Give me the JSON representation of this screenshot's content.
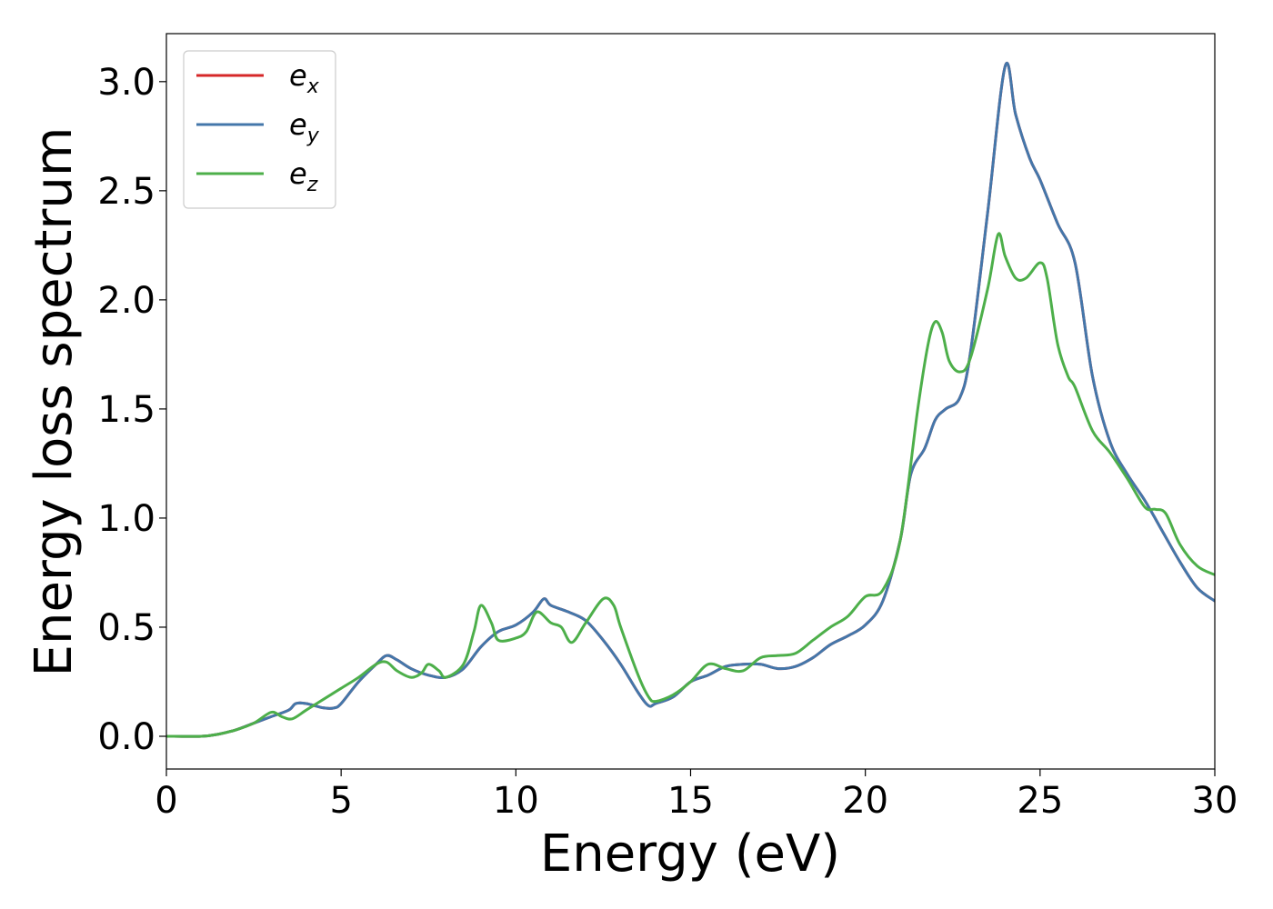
{
  "chart_data": {
    "type": "line",
    "title": "",
    "xlabel": "Energy (eV)",
    "ylabel": "Energy loss spectrum",
    "xlim": [
      0,
      30
    ],
    "ylim": [
      -0.15,
      3.22
    ],
    "xticks": [
      0,
      5,
      10,
      15,
      20,
      25,
      30
    ],
    "xtick_labels": [
      "0",
      "5",
      "10",
      "15",
      "20",
      "25",
      "30"
    ],
    "yticks": [
      0.0,
      0.5,
      1.0,
      1.5,
      2.0,
      2.5,
      3.0
    ],
    "ytick_labels": [
      "0.0",
      "0.5",
      "1.0",
      "1.5",
      "2.0",
      "2.5",
      "3.0"
    ],
    "grid": false,
    "legend_position": "top-left",
    "series": [
      {
        "name": "e_x",
        "legend_base": "e",
        "legend_sub": "x",
        "color": "#d62728",
        "x": [
          0,
          1,
          1.5,
          2,
          2.5,
          3,
          3.5,
          3.7,
          4,
          4.5,
          4.8,
          5,
          5.5,
          6,
          6.3,
          6.6,
          7,
          7.5,
          8,
          8.5,
          9,
          9.5,
          10,
          10.5,
          10.8,
          11,
          11.5,
          12,
          12.5,
          13,
          13.5,
          13.8,
          14,
          14.5,
          15,
          15.5,
          16,
          16.5,
          17,
          17.5,
          18,
          18.5,
          19,
          19.5,
          20,
          20.5,
          21,
          21.3,
          21.7,
          22,
          22.3,
          22.7,
          23,
          23.5,
          24,
          24.3,
          24.7,
          25,
          25.5,
          26,
          26.5,
          27,
          27.5,
          28,
          28.5,
          29,
          29.5,
          30
        ],
        "y": [
          0,
          0,
          0.01,
          0.03,
          0.06,
          0.09,
          0.12,
          0.15,
          0.15,
          0.13,
          0.13,
          0.15,
          0.25,
          0.33,
          0.37,
          0.35,
          0.31,
          0.28,
          0.27,
          0.31,
          0.41,
          0.48,
          0.51,
          0.57,
          0.63,
          0.6,
          0.57,
          0.53,
          0.44,
          0.33,
          0.2,
          0.14,
          0.15,
          0.18,
          0.25,
          0.28,
          0.32,
          0.33,
          0.33,
          0.31,
          0.32,
          0.36,
          0.42,
          0.46,
          0.51,
          0.62,
          0.9,
          1.2,
          1.32,
          1.45,
          1.5,
          1.55,
          1.75,
          2.4,
          3.07,
          2.85,
          2.65,
          2.55,
          2.35,
          2.17,
          1.65,
          1.35,
          1.2,
          1.08,
          0.94,
          0.8,
          0.68,
          0.62
        ]
      },
      {
        "name": "e_y",
        "legend_base": "e",
        "legend_sub": "y",
        "color": "#4477aa",
        "x": [
          0,
          1,
          1.5,
          2,
          2.5,
          3,
          3.5,
          3.7,
          4,
          4.5,
          4.8,
          5,
          5.5,
          6,
          6.3,
          6.6,
          7,
          7.5,
          8,
          8.5,
          9,
          9.5,
          10,
          10.5,
          10.8,
          11,
          11.5,
          12,
          12.5,
          13,
          13.5,
          13.8,
          14,
          14.5,
          15,
          15.5,
          16,
          16.5,
          17,
          17.5,
          18,
          18.5,
          19,
          19.5,
          20,
          20.5,
          21,
          21.3,
          21.7,
          22,
          22.3,
          22.7,
          23,
          23.5,
          24,
          24.3,
          24.7,
          25,
          25.5,
          26,
          26.5,
          27,
          27.5,
          28,
          28.5,
          29,
          29.5,
          30
        ],
        "y": [
          0,
          0,
          0.01,
          0.03,
          0.06,
          0.09,
          0.12,
          0.15,
          0.15,
          0.13,
          0.13,
          0.15,
          0.25,
          0.33,
          0.37,
          0.35,
          0.31,
          0.28,
          0.27,
          0.31,
          0.41,
          0.48,
          0.51,
          0.57,
          0.63,
          0.6,
          0.57,
          0.53,
          0.44,
          0.33,
          0.2,
          0.14,
          0.15,
          0.18,
          0.25,
          0.28,
          0.32,
          0.33,
          0.33,
          0.31,
          0.32,
          0.36,
          0.42,
          0.46,
          0.51,
          0.62,
          0.9,
          1.2,
          1.32,
          1.45,
          1.5,
          1.55,
          1.75,
          2.4,
          3.07,
          2.85,
          2.65,
          2.55,
          2.35,
          2.17,
          1.65,
          1.35,
          1.2,
          1.08,
          0.94,
          0.8,
          0.68,
          0.62
        ]
      },
      {
        "name": "e_z",
        "legend_base": "e",
        "legend_sub": "z",
        "color": "#4daf4a",
        "x": [
          0,
          1,
          1.5,
          2,
          2.5,
          3,
          3.3,
          3.6,
          4,
          4.5,
          5,
          5.5,
          6,
          6.3,
          6.6,
          7,
          7.3,
          7.5,
          7.8,
          8,
          8.5,
          8.8,
          9,
          9.3,
          9.5,
          10,
          10.3,
          10.6,
          11,
          11.3,
          11.6,
          12,
          12.5,
          12.8,
          13,
          13.5,
          13.8,
          14,
          14.5,
          15,
          15.5,
          16,
          16.5,
          17,
          17.5,
          18,
          18.5,
          19,
          19.5,
          20,
          20.5,
          21,
          21.5,
          21.8,
          22,
          22.2,
          22.4,
          22.7,
          23,
          23.5,
          23.8,
          24,
          24.3,
          24.6,
          25,
          25.2,
          25.5,
          25.8,
          26,
          26.5,
          27,
          27.5,
          28,
          28.3,
          28.6,
          29,
          29.5,
          30
        ],
        "y": [
          0,
          0,
          0.01,
          0.03,
          0.06,
          0.11,
          0.09,
          0.08,
          0.12,
          0.17,
          0.22,
          0.27,
          0.33,
          0.34,
          0.3,
          0.27,
          0.29,
          0.33,
          0.3,
          0.27,
          0.33,
          0.48,
          0.6,
          0.52,
          0.44,
          0.45,
          0.48,
          0.57,
          0.52,
          0.5,
          0.43,
          0.52,
          0.63,
          0.6,
          0.5,
          0.28,
          0.18,
          0.16,
          0.19,
          0.25,
          0.33,
          0.31,
          0.3,
          0.36,
          0.37,
          0.38,
          0.44,
          0.5,
          0.55,
          0.64,
          0.67,
          0.9,
          1.5,
          1.8,
          1.9,
          1.85,
          1.72,
          1.67,
          1.73,
          2.05,
          2.3,
          2.2,
          2.1,
          2.1,
          2.17,
          2.1,
          1.8,
          1.65,
          1.6,
          1.4,
          1.3,
          1.18,
          1.05,
          1.04,
          1.02,
          0.88,
          0.78,
          0.74
        ]
      }
    ]
  }
}
